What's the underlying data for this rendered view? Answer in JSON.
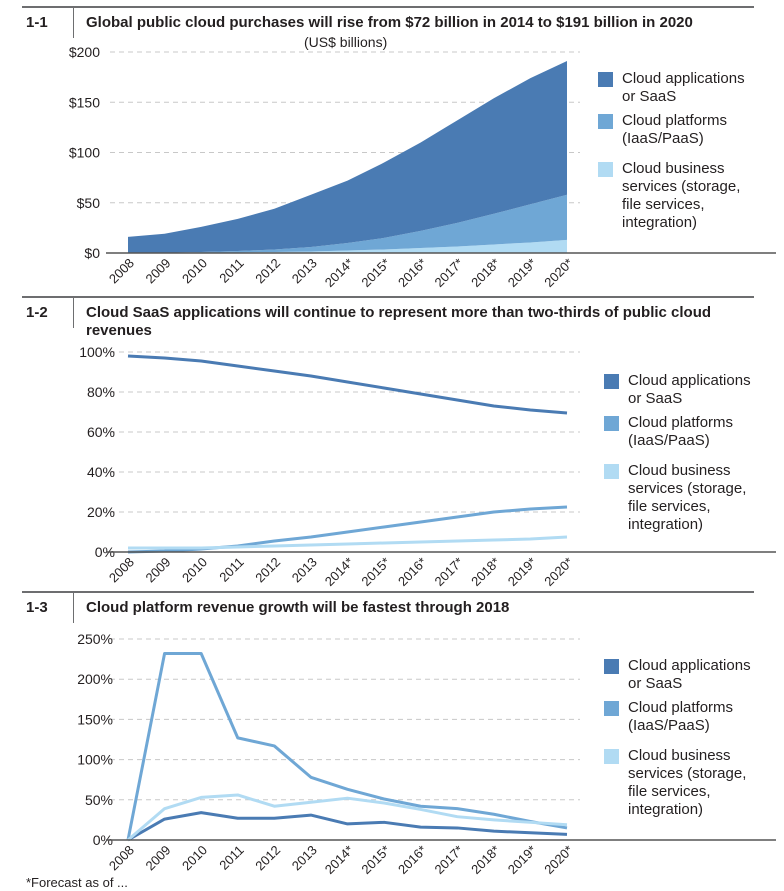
{
  "footnote": "*Forecast as of ...",
  "colors": {
    "saas": "#4a7bb3",
    "platforms": "#6fa7d5",
    "business": "#b1dbf3",
    "grid": "#c8c8c8",
    "axis": "#555555"
  },
  "legend": [
    {
      "key": "saas",
      "label_lines": [
        "Cloud applications",
        "or SaaS"
      ]
    },
    {
      "key": "platforms",
      "label_lines": [
        "Cloud platforms",
        "(IaaS/PaaS)"
      ]
    },
    {
      "key": "business",
      "label_lines": [
        "Cloud business",
        "services (storage,",
        "file services,",
        "integration)"
      ]
    }
  ],
  "chart_data": [
    {
      "id": "1-1",
      "type": "area",
      "stacked": true,
      "title": "Global public cloud purchases will rise from $72 billion in 2014 to $191 billion in 2020",
      "subtitle": "(US$ billions)",
      "categories": [
        "2008",
        "2009",
        "2010",
        "2011",
        "2012",
        "2013",
        "2014*",
        "2015*",
        "2016*",
        "2017*",
        "2018*",
        "2019*",
        "2020*"
      ],
      "y_ticks": [
        0,
        50,
        100,
        150,
        200
      ],
      "y_tick_labels": [
        "$0",
        "$50",
        "$100",
        "$150",
        "$200"
      ],
      "ylim": [
        0,
        200
      ],
      "grid": true,
      "legend_position": "right",
      "series": [
        {
          "name": "Cloud business services (storage, file services, integration)",
          "key": "business",
          "values": [
            0,
            0,
            0.3,
            0.5,
            1,
            1.5,
            2.5,
            3.5,
            5,
            6.5,
            8.5,
            10.5,
            13
          ]
        },
        {
          "name": "Cloud platforms (IaaS/PaaS)",
          "key": "platforms",
          "values": [
            0,
            0.2,
            0.7,
            1.5,
            2.5,
            4.5,
            7.5,
            11.5,
            17,
            23.5,
            30.5,
            38,
            45
          ]
        },
        {
          "name": "Cloud applications or SaaS",
          "key": "saas",
          "values": [
            16,
            19,
            25,
            32,
            40.5,
            52,
            62,
            75,
            88,
            102,
            115,
            125.5,
            133
          ]
        }
      ],
      "totals": [
        16,
        19.2,
        26,
        34,
        44,
        58,
        72,
        90,
        110,
        132,
        154,
        174,
        191
      ]
    },
    {
      "id": "1-2",
      "type": "line",
      "title": "Cloud SaaS applications will continue to represent more than two-thirds of public cloud revenues",
      "categories": [
        "2008",
        "2009",
        "2010",
        "2011",
        "2012",
        "2013",
        "2014*",
        "2015*",
        "2016*",
        "2017*",
        "2018*",
        "2019*",
        "2020*"
      ],
      "y_ticks": [
        0,
        20,
        40,
        60,
        80,
        100
      ],
      "y_tick_labels": [
        "0%",
        "20%",
        "40%",
        "60%",
        "80%",
        "100%"
      ],
      "ylim": [
        0,
        100
      ],
      "grid": true,
      "legend_position": "right",
      "series": [
        {
          "name": "Cloud applications or SaaS",
          "key": "saas",
          "values": [
            98,
            97,
            95.5,
            93,
            90.5,
            88,
            85,
            82,
            79,
            76,
            73,
            71,
            69.5
          ]
        },
        {
          "name": "Cloud platforms (IaaS/PaaS)",
          "key": "platforms",
          "values": [
            0,
            0.5,
            1.5,
            3,
            5.5,
            7.5,
            10,
            12.5,
            15,
            17.5,
            20,
            21.5,
            22.5
          ]
        },
        {
          "name": "Cloud business services (storage, file services, integration)",
          "key": "business",
          "values": [
            2,
            2,
            2,
            2.5,
            3,
            3.5,
            4,
            4.5,
            5,
            5.5,
            6,
            6.5,
            7.5
          ]
        }
      ]
    },
    {
      "id": "1-3",
      "type": "line",
      "title": "Cloud platform revenue growth will be fastest through 2018",
      "categories": [
        "2008",
        "2009",
        "2010",
        "2011",
        "2012",
        "2013",
        "2014*",
        "2015*",
        "2016*",
        "2017*",
        "2018*",
        "2019*",
        "2020*"
      ],
      "y_ticks": [
        0,
        50,
        100,
        150,
        200,
        250
      ],
      "y_tick_labels": [
        "0%",
        "50%",
        "100%",
        "150%",
        "200%",
        "250%"
      ],
      "ylim": [
        0,
        250
      ],
      "grid": true,
      "legend_position": "right",
      "series": [
        {
          "name": "Cloud applications or SaaS",
          "key": "saas",
          "values": [
            0,
            26,
            34,
            27,
            27,
            31,
            20,
            22,
            16,
            15,
            11,
            9,
            7
          ]
        },
        {
          "name": "Cloud platforms (IaaS/PaaS)",
          "key": "platforms",
          "values": [
            0,
            232,
            232,
            127,
            117,
            78,
            63,
            51,
            42,
            39,
            32,
            23,
            15
          ]
        },
        {
          "name": "Cloud business services (storage, file services, integration)",
          "key": "business",
          "values": [
            0,
            39,
            53,
            56,
            42,
            47,
            52,
            46,
            38,
            29,
            25,
            22,
            19
          ]
        }
      ]
    }
  ]
}
